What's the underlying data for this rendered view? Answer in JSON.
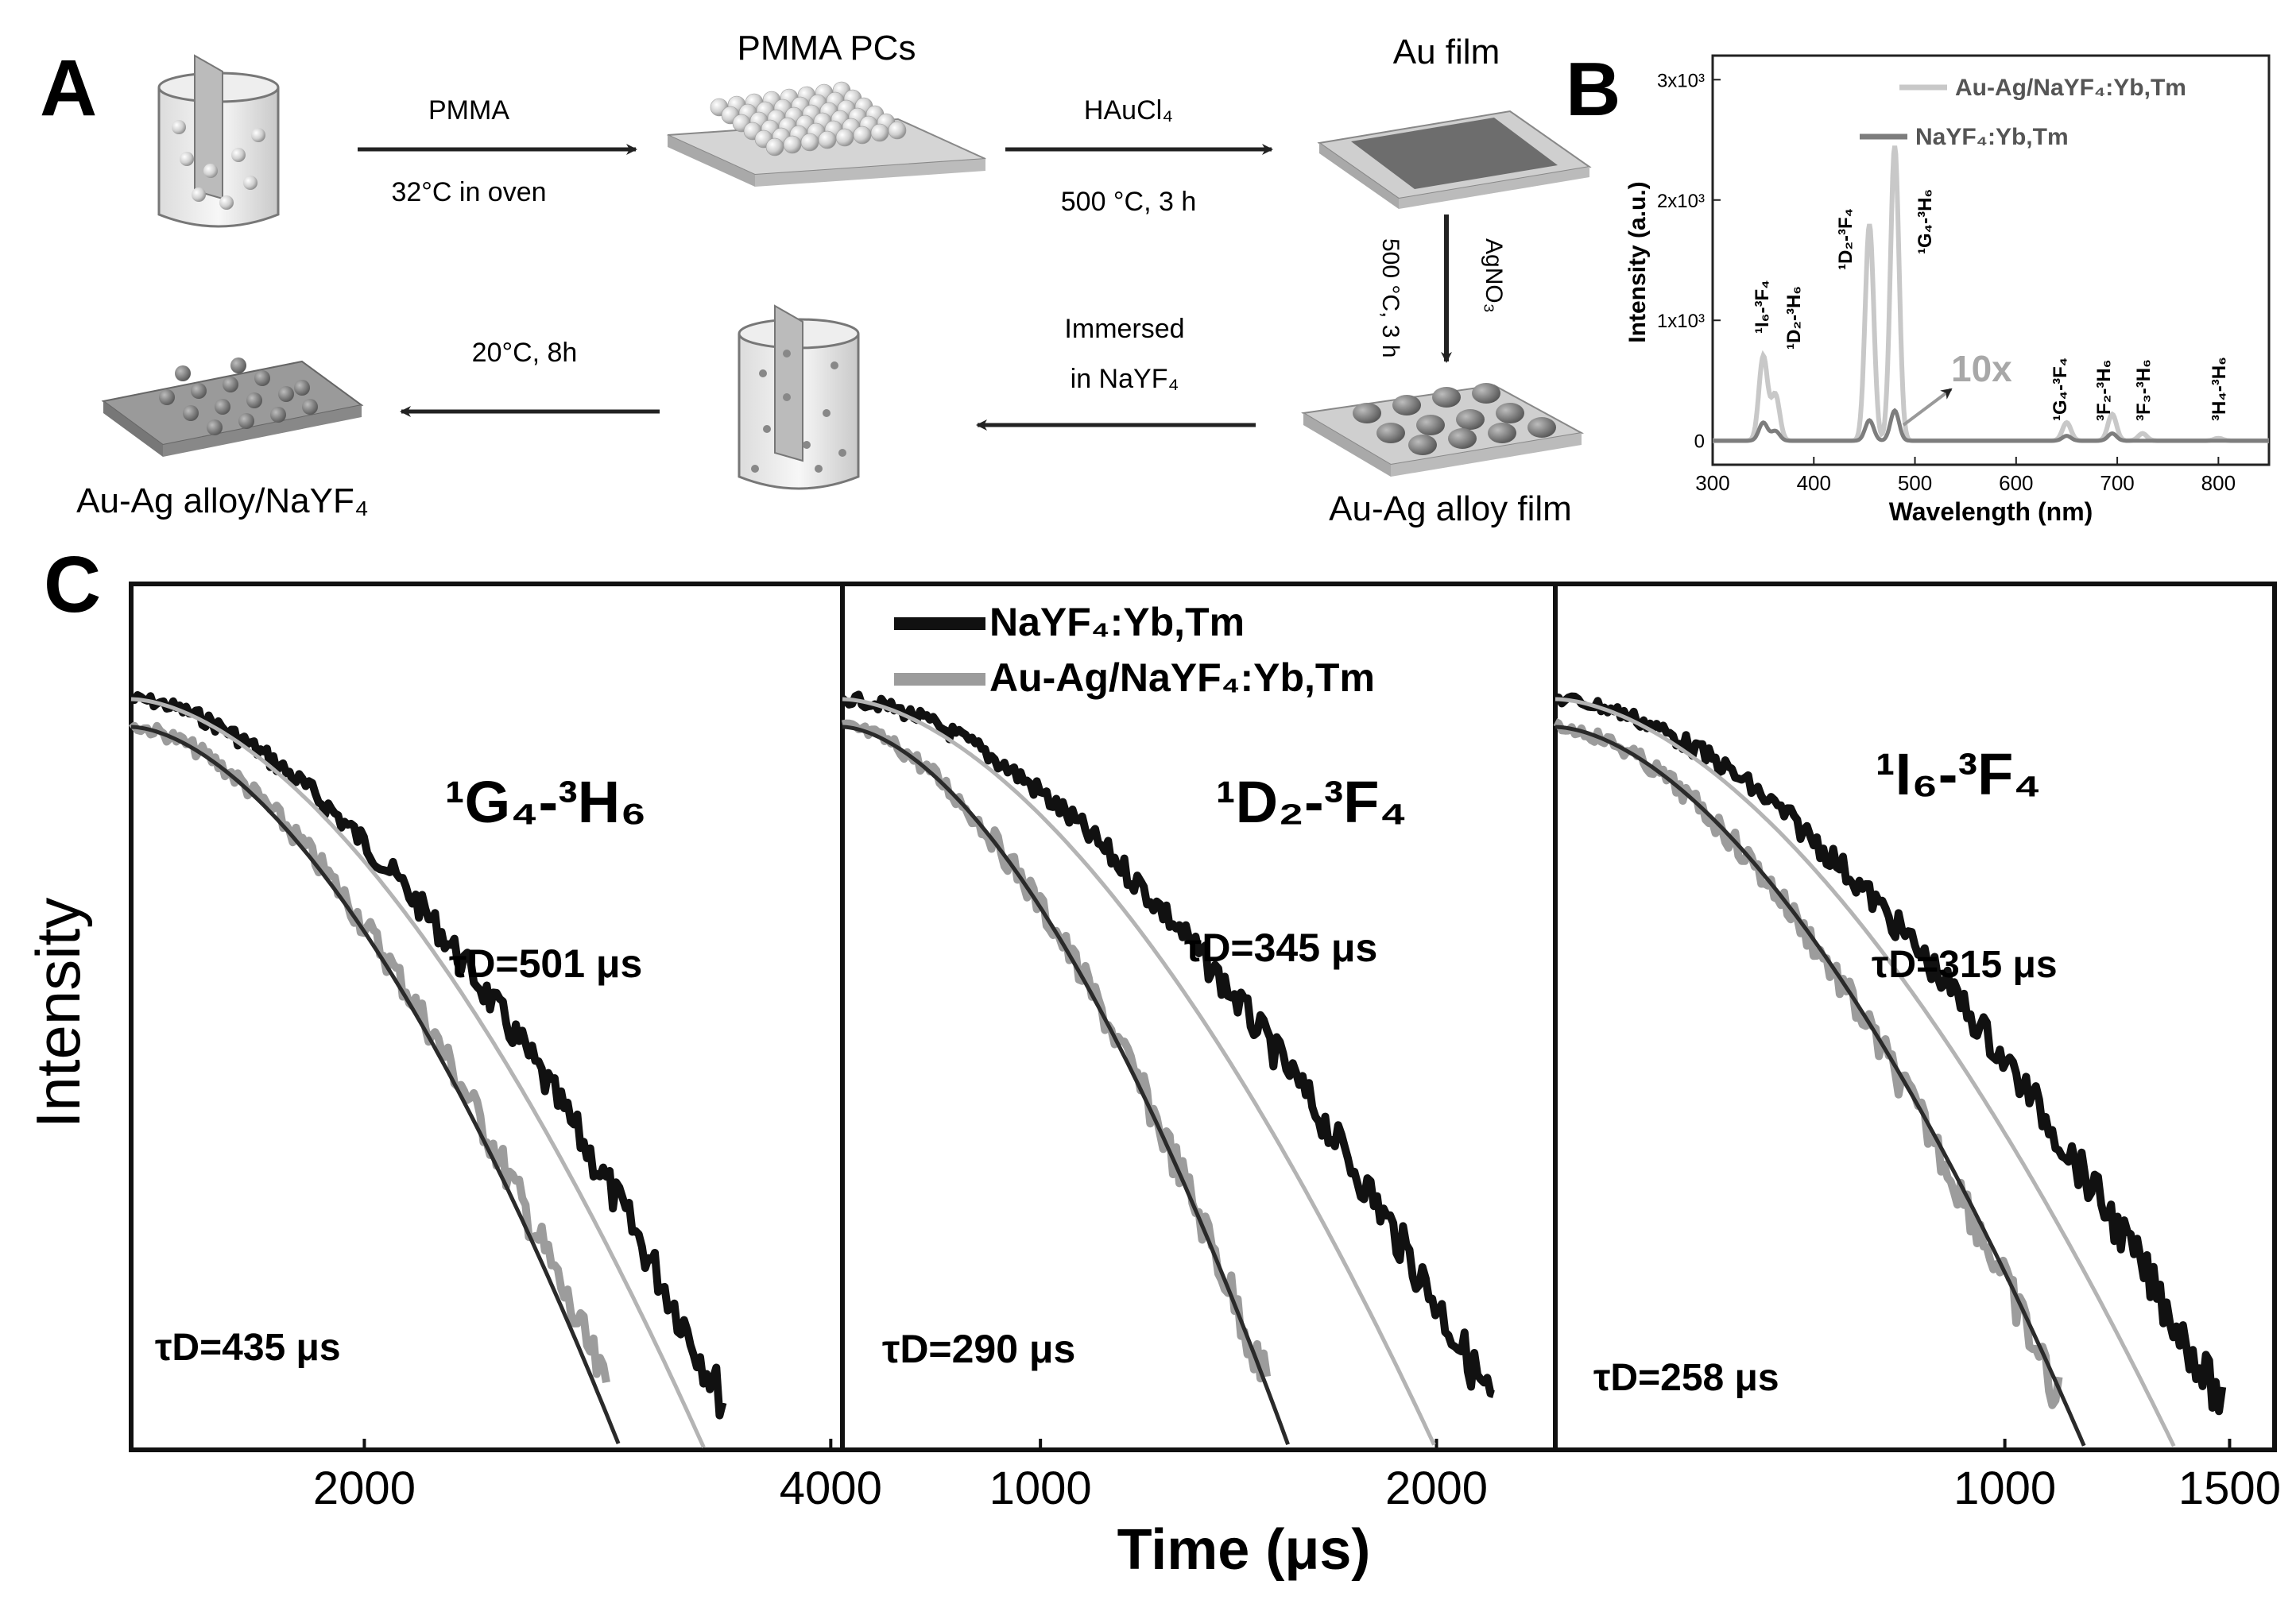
{
  "panels": {
    "A": {
      "label": "A",
      "steps": {
        "pmma_pcs_title": "PMMA PCs",
        "au_film_title": "Au film",
        "arrow1_top": "PMMA",
        "arrow1_bottom": "32°C in oven",
        "arrow2_top": "HAuCl₄",
        "arrow2_bottom": "500 °C, 3 h",
        "arrow3_left": "500 °C, 3 h",
        "arrow3_right": "AgNO₃",
        "alloy_film_title": "Au-Ag alloy film",
        "arrow4_top": "Immersed",
        "arrow4_bottom": "in NaYF₄",
        "arrow5_top": "20°C, 8h",
        "final_title": "Au-Ag alloy/NaYF₄"
      }
    },
    "B": {
      "label": "B",
      "legend": [
        "Au-Ag/NaYF₄:Yb,Tm",
        "NaYF₄:Yb,Tm"
      ],
      "annotation_10x": "10x",
      "transitions": [
        "¹I₆-³F₄",
        "¹D₂-³H₆",
        "¹D₂-³F₄",
        "¹G₄-³H₆",
        "¹G₄-³F₄",
        "³F₂-³H₆",
        "³F₃-³H₆",
        "³H₄-³H₆"
      ]
    },
    "C": {
      "label": "C",
      "ylabel": "Intensity",
      "xlabel": "Time (μs)",
      "legend": [
        "NaYF₄:Yb,Tm",
        "Au-Ag/NaYF₄:Yb,Tm"
      ],
      "subpanels": [
        {
          "transition": "¹G₄-³H₆",
          "tau_top": "τD=501 μs",
          "tau_bottom": "τD=435 μs"
        },
        {
          "transition": "¹D₂-³F₄",
          "tau_top": "τD=345 μs",
          "tau_bottom": "τD=290 μs"
        },
        {
          "transition": "¹I₆-³F₄",
          "tau_top": "τD=315 μs",
          "tau_bottom": "τD=258 μs"
        }
      ]
    }
  },
  "chart_data": [
    {
      "type": "line",
      "title": "",
      "xlabel": "Wavelength (nm)",
      "ylabel": "Intensity (a.u.)",
      "xlim": [
        300,
        850
      ],
      "ylim": [
        -200,
        3200
      ],
      "xticks": [
        "300",
        "400",
        "500",
        "600",
        "700",
        "800"
      ],
      "yticks": [
        "0",
        "1x10³",
        "2x10³",
        "3x10³"
      ],
      "series": [
        {
          "name": "Au-Ag/NaYF₄:Yb,Tm",
          "color": "#c8c8c8",
          "peaks": [
            {
              "x": 350,
              "y": 700
            },
            {
              "x": 362,
              "y": 380
            },
            {
              "x": 455,
              "y": 1800
            },
            {
              "x": 480,
              "y": 2450
            },
            {
              "x": 650,
              "y": 150
            },
            {
              "x": 695,
              "y": 220
            },
            {
              "x": 725,
              "y": 60
            },
            {
              "x": 800,
              "y": 20
            }
          ]
        },
        {
          "name": "NaYF₄:Yb,Tm",
          "color": "#7d7d7d",
          "peaks": [
            {
              "x": 350,
              "y": 150
            },
            {
              "x": 362,
              "y": 80
            },
            {
              "x": 455,
              "y": 170
            },
            {
              "x": 480,
              "y": 250
            },
            {
              "x": 650,
              "y": 40
            },
            {
              "x": 695,
              "y": 60
            }
          ]
        }
      ]
    },
    {
      "type": "line",
      "title": "¹G₄-³H₆",
      "xlabel": "Time (μs)",
      "ylabel": "Intensity",
      "xlim": [
        1000,
        4050
      ],
      "xticks": [
        "2000",
        "4000"
      ],
      "series": [
        {
          "name": "NaYF₄:Yb,Tm",
          "color": "#111111",
          "tau_us": 501,
          "end_x": 3550,
          "fit_end_x": 3460
        },
        {
          "name": "Au-Ag/NaYF₄:Yb,Tm",
          "color": "#9c9c9c",
          "tau_us": 435,
          "end_x": 3050,
          "fit_end_x": 3100
        }
      ]
    },
    {
      "type": "line",
      "title": "¹D₂-³F₄",
      "xlabel": "Time (μs)",
      "ylabel": "Intensity",
      "xlim": [
        500,
        2300
      ],
      "xticks": [
        "1000",
        "2000"
      ],
      "series": [
        {
          "name": "NaYF₄:Yb,Tm",
          "color": "#111111",
          "tau_us": 345,
          "end_x": 2150,
          "fit_end_x": 2000
        },
        {
          "name": "Au-Ag/NaYF₄:Yb,Tm",
          "color": "#9c9c9c",
          "tau_us": 290,
          "end_x": 1580,
          "fit_end_x": 1630
        }
      ]
    },
    {
      "type": "line",
      "title": "¹I₆-³F₄",
      "xlabel": "Time (μs)",
      "ylabel": "Intensity",
      "xlim": [
        0,
        1600
      ],
      "xticks": [
        "1000",
        "1500"
      ],
      "series": [
        {
          "name": "NaYF₄:Yb,Tm",
          "color": "#111111",
          "tau_us": 315,
          "end_x": 1490,
          "fit_end_x": 1380
        },
        {
          "name": "Au-Ag/NaYF₄:Yb,Tm",
          "color": "#9c9c9c",
          "tau_us": 258,
          "end_x": 1120,
          "fit_end_x": 1180
        }
      ]
    }
  ]
}
